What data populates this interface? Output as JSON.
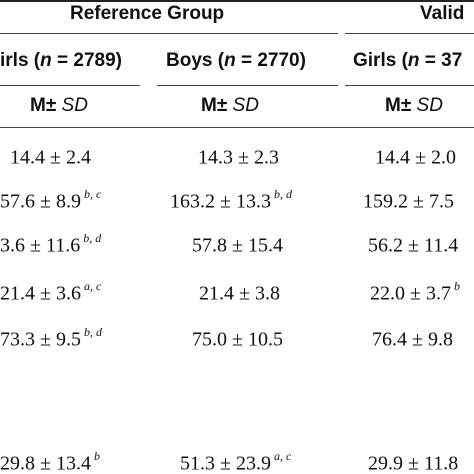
{
  "groups": {
    "reference": "Reference Group",
    "validation": "Valid"
  },
  "columns": [
    {
      "prefix": "irls (",
      "n_var": "n",
      "eq": " = 2789)"
    },
    {
      "prefix": "Boys (",
      "n_var": "n",
      "eq": " = 2770)"
    },
    {
      "prefix": "Girls (",
      "n_var": "n",
      "eq": " = 37"
    }
  ],
  "stat_header": {
    "m": "M±",
    "sd": "SD"
  },
  "rows": [
    [
      {
        "value": "14.4 ± 2.4",
        "sup": ""
      },
      {
        "value": "14.3 ± 2.3",
        "sup": ""
      },
      {
        "value": "14.4 ± 2.0",
        "sup": ""
      }
    ],
    [
      {
        "value": "57.6 ± 8.9",
        "sup": "b, c"
      },
      {
        "value": "163.2 ± 13.3",
        "sup": "b, d"
      },
      {
        "value": "159.2 ± 7.5",
        "sup": ""
      }
    ],
    [
      {
        "value": "3.6 ± 11.6",
        "sup": "b, d"
      },
      {
        "value": "57.8 ± 15.4",
        "sup": ""
      },
      {
        "value": "56.2 ± 11.4",
        "sup": ""
      }
    ],
    [
      {
        "value": "21.4 ± 3.6",
        "sup": "a, c"
      },
      {
        "value": "21.4 ± 3.8",
        "sup": ""
      },
      {
        "value": "22.0 ± 3.7",
        "sup": "b"
      }
    ],
    [
      {
        "value": "73.3 ± 9.5",
        "sup": "b, d"
      },
      {
        "value": "75.0 ± 10.5",
        "sup": ""
      },
      {
        "value": "76.4 ± 9.8",
        "sup": ""
      }
    ],
    [
      {
        "value": "29.8 ± 13.4",
        "sup": "b"
      },
      {
        "value": "51.3 ± 23.9",
        "sup": "a, c"
      },
      {
        "value": "29.9 ± 11.8",
        "sup": ""
      }
    ]
  ]
}
